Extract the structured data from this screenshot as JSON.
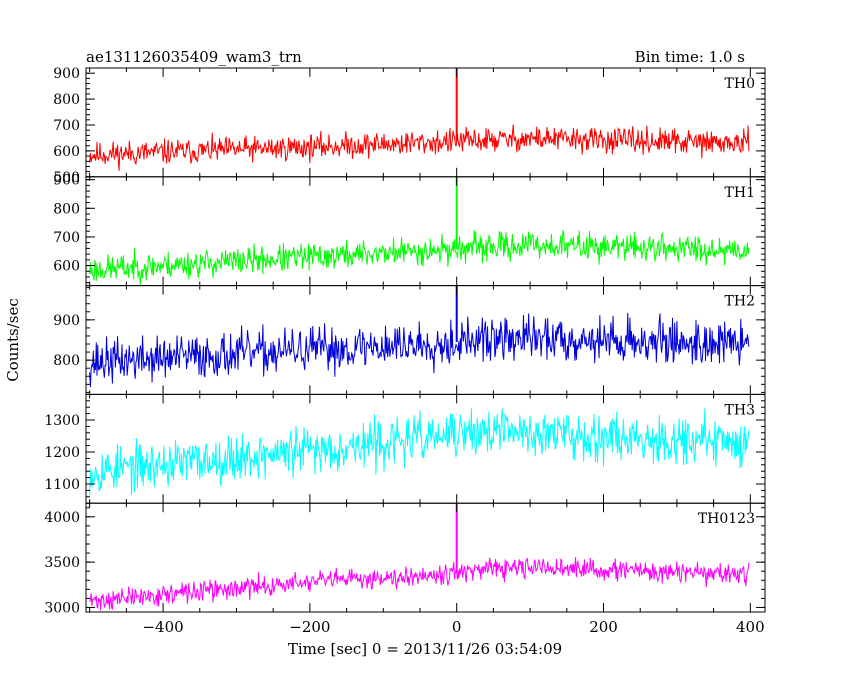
{
  "chart_data": {
    "type": "line",
    "title": "ae131126035409_wam3_trn",
    "subtitle": "Bin time: 1.0 s",
    "xlabel": "Time [sec] 0 = 2013/11/26 03:54:09",
    "ylabel": "Counts/sec",
    "xlim": [
      -505,
      420
    ],
    "x_ticks": [
      -400,
      -200,
      0,
      200,
      400
    ],
    "x_tick_labels": [
      "−400",
      "−200",
      "0",
      "200",
      "400"
    ],
    "x_range": [
      -500,
      398
    ],
    "panels": [
      {
        "name": "TH0",
        "color": "#ff0000",
        "ylim": [
          500,
          920
        ],
        "y_ticks": [
          500,
          600,
          700,
          800,
          900
        ],
        "y_tick_labels": [
          "500",
          "600",
          "700",
          "800",
          "900"
        ],
        "trend": [
          [
            -500,
            585
          ],
          [
            -200,
            615
          ],
          [
            100,
            648
          ],
          [
            398,
            628
          ]
        ],
        "noise": 30,
        "spike": [
          0,
          920
        ],
        "seed": 11
      },
      {
        "name": "TH1",
        "color": "#00ff00",
        "ylim": [
          530,
          910
        ],
        "y_ticks": [
          600,
          700,
          800,
          900
        ],
        "y_tick_labels": [
          "600",
          "700",
          "800",
          "900"
        ],
        "trend": [
          [
            -500,
            585
          ],
          [
            -200,
            630
          ],
          [
            100,
            672
          ],
          [
            398,
            655
          ]
        ],
        "noise": 30,
        "spike": [
          0,
          910
        ],
        "seed": 23
      },
      {
        "name": "TH2",
        "color": "#0000dd",
        "ylim": [
          715,
          985
        ],
        "y_ticks": [
          800,
          900
        ],
        "y_tick_labels": [
          "800",
          "900"
        ],
        "trend": [
          [
            -500,
            795
          ],
          [
            -200,
            825
          ],
          [
            100,
            855
          ],
          [
            398,
            840
          ]
        ],
        "noise": 34,
        "spike": [
          0,
          985
        ],
        "seed": 37
      },
      {
        "name": "TH3",
        "color": "#00ffff",
        "ylim": [
          1040,
          1380
        ],
        "y_ticks": [
          1100,
          1200,
          1300
        ],
        "y_tick_labels": [
          "1100",
          "1200",
          "1300"
        ],
        "trend": [
          [
            -500,
            1140
          ],
          [
            -200,
            1205
          ],
          [
            50,
            1265
          ],
          [
            398,
            1230
          ]
        ],
        "noise": 45,
        "spike": null,
        "seed": 53
      },
      {
        "name": "TH0123",
        "color": "#ff00ff",
        "ylim": [
          2950,
          4150
        ],
        "y_ticks": [
          3000,
          3500,
          4000
        ],
        "y_tick_labels": [
          "3000",
          "3500",
          "4000"
        ],
        "trend": [
          [
            -500,
            3070
          ],
          [
            -200,
            3280
          ],
          [
            100,
            3440
          ],
          [
            398,
            3360
          ]
        ],
        "noise": 70,
        "spike": [
          0,
          4150
        ],
        "seed": 71
      }
    ]
  }
}
